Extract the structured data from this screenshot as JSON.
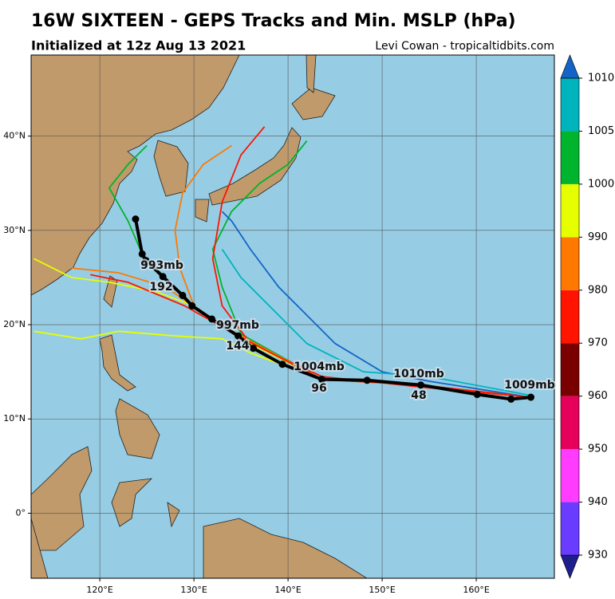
{
  "title": "16W SIXTEEN - GEPS Tracks and Min. MSLP (hPa)",
  "subtitle": "Initialized at 12z Aug 13 2021",
  "credit": "Levi Cowan - tropicaltidbits.com",
  "map": {
    "lon_range": [
      112.7,
      168.3
    ],
    "lat_range": [
      -6.9,
      48.6
    ],
    "lon_ticks": [
      {
        "value": 120,
        "label": "120°E"
      },
      {
        "value": 130,
        "label": "130°E"
      },
      {
        "value": 140,
        "label": "140°E"
      },
      {
        "value": 150,
        "label": "150°E"
      },
      {
        "value": 160,
        "label": "160°E"
      }
    ],
    "lat_ticks": [
      {
        "value": 0,
        "label": "0°"
      },
      {
        "value": 10,
        "label": "10°N"
      },
      {
        "value": 20,
        "label": "20°N"
      },
      {
        "value": 30,
        "label": "30°N"
      },
      {
        "value": 40,
        "label": "40°N"
      }
    ]
  },
  "colorbar": {
    "levels": [
      930,
      940,
      950,
      960,
      970,
      980,
      990,
      1000,
      1005,
      1010
    ],
    "colors": [
      "#1e1e8c",
      "#6a3cff",
      "#ff3cff",
      "#e6005c",
      "#7a0000",
      "#ff1400",
      "#ff7800",
      "#e6ff00",
      "#00b42d",
      "#00b4be",
      "#1464c8"
    ]
  },
  "mean_track": {
    "lon": [
      165.8,
      163.7,
      160.1,
      154.1,
      148.4,
      143.6,
      139.4,
      136.3,
      134.7,
      131.9,
      129.8,
      128.8,
      126.7,
      124.9,
      124.5,
      123.8
    ],
    "lat": [
      12.3,
      12.1,
      12.6,
      13.6,
      14.1,
      14.2,
      15.8,
      17.5,
      18.8,
      20.6,
      22.0,
      23.1,
      25.1,
      26.8,
      27.5,
      31.2
    ]
  },
  "annotations": [
    "1009mb",
    "1010mb",
    "48",
    "1004mb",
    "96",
    "144",
    "997mb",
    "192",
    "993mb"
  ],
  "ensemble": [
    {
      "color": "#00b42d",
      "lon": [
        165.8,
        154,
        143.6,
        135,
        133,
        132,
        134,
        137,
        140,
        142
      ],
      "lat": [
        12.3,
        13.6,
        14.2,
        19,
        24,
        28,
        32,
        35,
        37,
        39.5
      ]
    },
    {
      "color": "#ff7800",
      "lon": [
        165.8,
        154,
        143.6,
        135,
        130,
        128.5,
        128,
        128.8,
        131,
        134
      ],
      "lat": [
        12.3,
        13.6,
        14.2,
        18.5,
        22,
        26,
        30,
        34,
        37,
        39
      ]
    },
    {
      "color": "#ff1400",
      "lon": [
        165.8,
        154,
        143.6,
        136,
        133,
        132,
        133,
        135,
        137.5
      ],
      "lat": [
        12.3,
        13.4,
        14.5,
        18,
        22,
        27,
        33,
        38,
        41
      ]
    },
    {
      "color": "#e6ff00",
      "lon": [
        165.8,
        154,
        143.6,
        136,
        133,
        128,
        122,
        118,
        113
      ],
      "lat": [
        12.3,
        13.6,
        14.2,
        17,
        18.5,
        18.8,
        19.3,
        18.5,
        19.3
      ]
    },
    {
      "color": "#e6ff00",
      "lon": [
        165.8,
        154,
        143.6,
        135,
        130,
        126,
        121,
        117,
        113
      ],
      "lat": [
        12.3,
        13.6,
        14.2,
        18.5,
        22,
        23.5,
        24.5,
        25,
        27
      ]
    },
    {
      "color": "#00b42d",
      "lon": [
        165.8,
        154,
        143.6,
        134.7,
        129.8,
        124.5,
        123,
        121,
        123,
        125
      ],
      "lat": [
        12.3,
        13.6,
        14.2,
        18.8,
        22,
        27.5,
        31,
        34.5,
        37,
        39
      ]
    },
    {
      "color": "#1464c8",
      "lon": [
        165.8,
        155,
        150,
        145,
        142,
        139,
        136,
        134,
        133
      ],
      "lat": [
        12.3,
        14,
        15,
        18,
        21,
        24,
        28,
        31,
        32
      ]
    },
    {
      "color": "#00b4be",
      "lon": [
        165.8,
        155,
        148,
        142,
        138,
        135,
        133
      ],
      "lat": [
        12.5,
        14.5,
        15,
        18,
        22,
        25,
        28
      ]
    },
    {
      "color": "#ff7800",
      "lon": [
        165.8,
        154,
        143.6,
        135,
        131.9,
        127,
        122,
        117
      ],
      "lat": [
        12.3,
        13.6,
        14.2,
        18.8,
        20.6,
        24,
        25.5,
        26
      ]
    },
    {
      "color": "#ff1400",
      "lon": [
        165.8,
        154,
        143.6,
        134.7,
        129,
        123,
        119
      ],
      "lat": [
        12.3,
        13.6,
        14.2,
        18.8,
        22,
        24.5,
        25.3
      ]
    }
  ]
}
